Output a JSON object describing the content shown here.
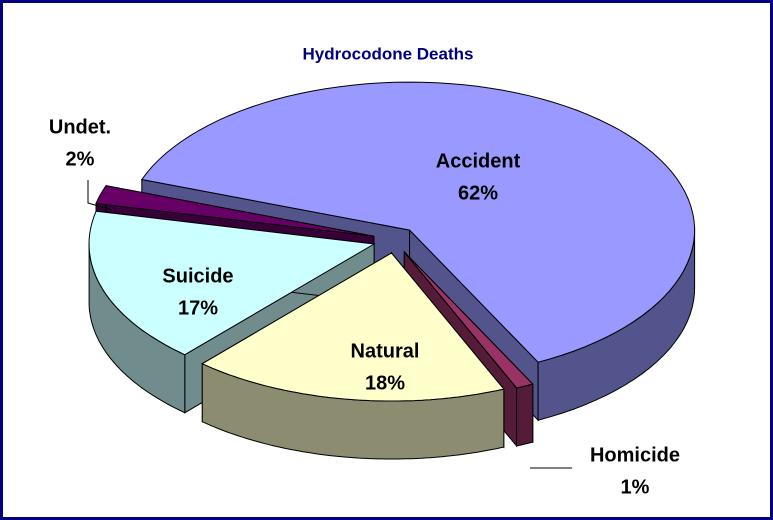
{
  "chart_data": {
    "type": "pie3d",
    "title": "Hydrocodone Deaths",
    "categories": [
      "Accident",
      "Homicide",
      "Natural",
      "Suicide",
      "Undet."
    ],
    "values": [
      62,
      1,
      18,
      17,
      2
    ],
    "value_labels": [
      "62%",
      "1%",
      "18%",
      "17%",
      "2%"
    ],
    "colors": [
      "#9999ff",
      "#993366",
      "#ffffcc",
      "#ccffff",
      "#660066"
    ]
  }
}
